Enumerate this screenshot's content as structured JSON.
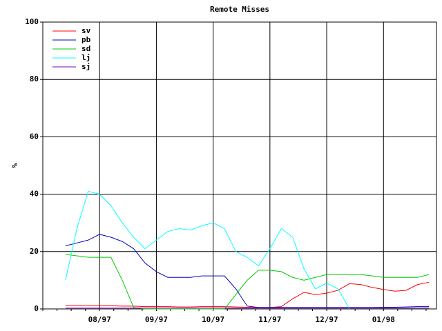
{
  "chart_data": {
    "type": "line",
    "title": "Remote Misses",
    "y_label": "%",
    "x": [
      12,
      18,
      24,
      30,
      36,
      42,
      48,
      54,
      60,
      66,
      72,
      78,
      84,
      90,
      96,
      102,
      108,
      114,
      120,
      126,
      132,
      138,
      144,
      150,
      156,
      162,
      168,
      174,
      180,
      186,
      192,
      198,
      204
    ],
    "xlim": [
      0,
      208
    ],
    "xticks": [
      {
        "value": 30,
        "label": "08/97"
      },
      {
        "value": 60,
        "label": "09/97"
      },
      {
        "value": 90,
        "label": "10/97"
      },
      {
        "value": 120,
        "label": "11/97"
      },
      {
        "value": 150,
        "label": "12/97"
      },
      {
        "value": 180,
        "label": "01/98"
      }
    ],
    "ylim": [
      0,
      100
    ],
    "yticks": [
      0,
      20,
      40,
      60,
      80,
      100
    ],
    "grid": true,
    "legend": "top-left",
    "series": [
      {
        "name": "sv",
        "color": "#ff0000",
        "values": [
          1.3,
          1.3,
          1.3,
          1.2,
          1.1,
          1,
          1,
          0.8,
          0.8,
          0.8,
          0.7,
          0.7,
          0.8,
          0.8,
          0.8,
          0.7,
          0.6,
          0.5,
          0.5,
          0.8,
          3.5,
          5.8,
          5,
          5.5,
          6.5,
          8.8,
          8.5,
          7.5,
          6.8,
          6.2,
          6.5,
          8.5,
          9.3
        ]
      },
      {
        "name": "pb",
        "color": "#0000c0",
        "values": [
          22,
          23,
          24,
          26,
          25,
          23.5,
          21,
          16,
          13,
          11,
          11,
          11,
          11.5,
          11.5,
          11.5,
          7,
          1,
          0.5,
          0.5,
          0.5,
          0.5,
          0.5,
          0.5,
          0.5,
          0.5,
          0.5,
          0.5,
          0.5,
          0.6,
          0.6,
          0.7,
          0.8,
          0.8
        ]
      },
      {
        "name": "sd",
        "color": "#00cc00",
        "values": [
          19,
          18.5,
          18,
          18,
          18,
          10,
          0.5,
          0,
          0,
          0,
          0,
          0,
          0,
          0,
          0,
          5,
          10,
          13.5,
          13.5,
          13,
          11,
          10,
          11,
          12,
          12,
          12,
          12,
          11.5,
          11,
          11,
          11,
          11,
          12
        ]
      },
      {
        "name": "lj",
        "color": "#00ffff",
        "values": [
          10,
          28,
          41,
          40,
          36,
          30,
          25,
          21,
          24,
          27,
          28,
          27.5,
          29,
          30,
          28,
          20,
          18,
          15,
          21,
          28,
          25,
          14,
          7,
          9,
          7,
          0,
          null,
          null,
          null,
          null,
          null,
          null,
          null
        ]
      },
      {
        "name": "sj",
        "color": "#8000c0",
        "values": [
          0.3,
          0.3,
          0.3,
          0.3,
          0.3,
          0.3,
          0.3,
          0.3,
          0.3,
          0.3,
          0.3,
          0.3,
          0.3,
          0.3,
          0.3,
          0.3,
          0.3,
          0.3,
          0.3,
          0.3,
          0.3,
          0.3,
          0.3,
          0.3,
          0.3,
          0.3,
          0.3,
          0.3,
          0.3,
          0.3,
          0.3,
          0.3,
          0.3
        ]
      }
    ]
  }
}
